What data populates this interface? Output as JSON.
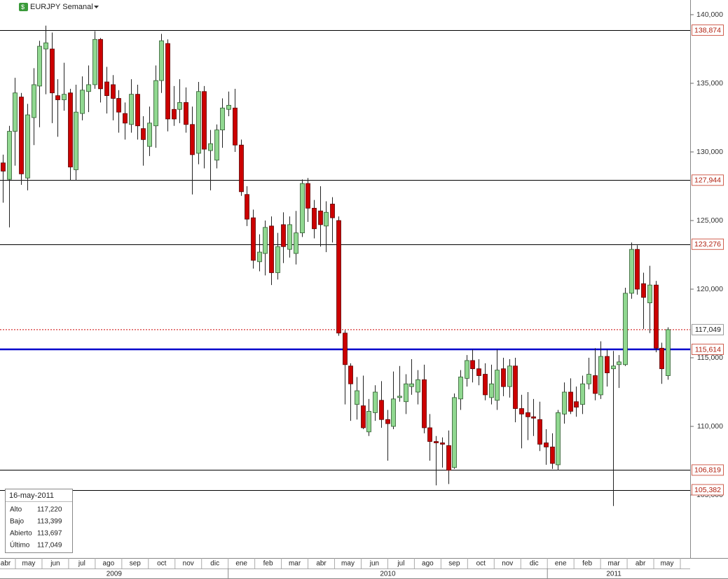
{
  "chart_data": {
    "type": "candlestick",
    "title": "EURJPY Semanal",
    "up_color": "#90d890",
    "down_color": "#cc0000",
    "open": [
      129.2,
      128.0,
      131.5,
      134.0,
      128.1,
      132.5,
      134.8,
      137.5,
      137.5,
      134.1,
      133.8,
      134.3,
      128.7,
      132.8,
      134.4,
      134.9,
      138.2,
      135.1,
      134.9,
      133.9,
      132.8,
      132.0,
      134.2,
      131.7,
      130.4,
      131.9,
      135.2,
      137.9,
      133.1,
      133.1,
      133.6,
      132.0,
      129.9,
      134.4,
      130.1,
      129.4,
      131.6,
      133.1,
      133.2,
      130.5,
      126.9,
      125.2,
      122.0,
      122.6,
      124.6,
      121.2,
      124.7,
      122.9,
      122.6,
      124.1,
      127.7,
      125.9,
      125.7,
      124.6,
      126.2,
      125.0,
      116.8,
      114.4,
      111.6,
      111.5,
      109.6,
      111.0,
      111.9,
      110.5,
      110.0,
      112.1,
      111.8,
      112.9,
      112.5,
      113.4,
      109.9,
      108.9,
      108.8,
      108.6,
      107.0,
      112.0,
      113.5,
      114.8,
      114.2,
      113.8,
      112.1,
      111.9,
      114.2,
      112.9,
      114.4,
      111.3,
      111.0,
      110.7,
      110.5,
      108.8,
      108.5,
      107.2,
      110.9,
      112.5,
      111.8,
      111.6,
      113.1,
      113.7,
      112.3,
      115.1,
      114.2,
      114.5,
      114.5,
      119.7,
      122.9,
      120.4,
      119.0,
      120.3,
      115.7,
      113.697
    ],
    "high": [
      129.8,
      131.9,
      135.4,
      134.3,
      133.5,
      136.1,
      138.1,
      139.2,
      138.7,
      135.3,
      136.5,
      134.6,
      134.9,
      135.5,
      136.3,
      138.8,
      138.3,
      136.2,
      135.6,
      134.5,
      133.6,
      135.3,
      134.9,
      132.6,
      133.3,
      136.3,
      138.6,
      138.2,
      134.8,
      135.3,
      134.7,
      133.3,
      135.1,
      134.8,
      131.6,
      132.0,
      133.9,
      134.4,
      134.6,
      130.9,
      127.5,
      125.8,
      124.0,
      125.0,
      125.3,
      124.1,
      125.6,
      125.3,
      125.7,
      128.0,
      128.1,
      126.5,
      127.5,
      126.4,
      126.7,
      125.3,
      117.0,
      114.6,
      113.6,
      113.7,
      112.0,
      113.0,
      113.3,
      111.2,
      114.0,
      114.4,
      113.8,
      114.9,
      114.1,
      114.5,
      110.9,
      109.3,
      109.2,
      109.7,
      112.4,
      114.1,
      115.2,
      115.6,
      114.9,
      114.6,
      114.5,
      115.6,
      115.0,
      114.9,
      115.0,
      112.3,
      112.5,
      112.0,
      111.8,
      109.8,
      109.5,
      111.2,
      113.2,
      113.5,
      112.9,
      113.7,
      115.0,
      115.7,
      116.2,
      115.6,
      115.5,
      115.2,
      120.1,
      123.4,
      123.2,
      121.2,
      121.7,
      120.6,
      116.1,
      117.22
    ],
    "low": [
      126.3,
      124.5,
      129.0,
      127.6,
      127.2,
      130.5,
      131.8,
      134.2,
      132.1,
      131.1,
      133.0,
      127.9,
      127.9,
      132.3,
      132.9,
      134.6,
      133.6,
      132.8,
      132.3,
      131.4,
      130.9,
      131.4,
      130.9,
      129.0,
      129.7,
      130.3,
      134.3,
      131.5,
      131.9,
      132.1,
      131.4,
      126.9,
      129.1,
      128.8,
      127.2,
      128.8,
      130.3,
      132.6,
      130.0,
      126.8,
      124.6,
      121.5,
      121.3,
      121.0,
      120.3,
      120.7,
      121.9,
      122.3,
      121.8,
      123.8,
      124.9,
      123.7,
      123.1,
      122.7,
      123.4,
      116.6,
      111.6,
      110.4,
      110.5,
      109.8,
      109.3,
      110.4,
      109.9,
      107.5,
      109.8,
      111.8,
      110.9,
      112.3,
      111.6,
      109.5,
      107.5,
      105.7,
      107.0,
      105.8,
      106.9,
      111.2,
      112.9,
      113.2,
      113.0,
      111.9,
      111.6,
      111.2,
      112.2,
      112.1,
      110.3,
      108.4,
      109.0,
      109.3,
      108.2,
      107.2,
      106.9,
      106.8,
      110.2,
      110.9,
      110.7,
      110.9,
      112.7,
      111.9,
      112.0,
      112.9,
      104.2,
      112.8,
      114.4,
      119.3,
      119.6,
      117.1,
      116.8,
      115.4,
      113.1,
      113.399
    ],
    "close": [
      128.6,
      131.5,
      134.3,
      128.4,
      132.7,
      134.9,
      137.7,
      137.95,
      134.3,
      133.8,
      134.2,
      128.9,
      132.9,
      134.5,
      134.9,
      138.2,
      134.6,
      134.1,
      133.9,
      132.9,
      132.1,
      134.2,
      131.9,
      130.9,
      132.1,
      135.2,
      138.1,
      132.4,
      132.4,
      133.6,
      132.0,
      129.8,
      134.4,
      130.2,
      130.6,
      131.6,
      133.2,
      133.4,
      130.5,
      127.1,
      125.1,
      122.1,
      122.7,
      124.5,
      121.2,
      123.1,
      123.1,
      124.7,
      124.1,
      127.7,
      125.9,
      124.4,
      124.7,
      125.6,
      125.2,
      116.8,
      114.5,
      113.1,
      112.6,
      109.9,
      111.1,
      112.5,
      110.5,
      110.2,
      112.0,
      112.2,
      113.1,
      113.1,
      113.4,
      109.9,
      108.9,
      108.8,
      108.7,
      106.8,
      112.1,
      113.6,
      114.8,
      114.2,
      113.7,
      112.3,
      113.1,
      114.1,
      112.9,
      114.4,
      111.3,
      110.9,
      110.7,
      110.6,
      108.7,
      108.5,
      107.3,
      111.0,
      112.5,
      111.1,
      111.4,
      113.1,
      113.8,
      112.4,
      115.1,
      113.9,
      114.4,
      114.7,
      119.7,
      122.9,
      120.0,
      119.4,
      120.3,
      115.7,
      114.2,
      117.049
    ],
    "ylim": [
      100.41,
      141.07
    ],
    "yticks": [
      {
        "value": 140,
        "label": "140,000"
      },
      {
        "value": 135,
        "label": "135,000"
      },
      {
        "value": 130,
        "label": "130,000"
      },
      {
        "value": 125,
        "label": "125,000"
      },
      {
        "value": 120,
        "label": "120,000"
      },
      {
        "value": 115,
        "label": "115,000"
      },
      {
        "value": 110,
        "label": "110,000"
      },
      {
        "value": 105,
        "label": "105,000"
      }
    ],
    "levels": [
      {
        "value": 138.874,
        "label": "138,874"
      },
      {
        "value": 127.944,
        "label": "127,944"
      },
      {
        "value": 123.276,
        "label": "123,276"
      },
      {
        "value": 106.819,
        "label": "106,819"
      },
      {
        "value": 105.382,
        "label": "105,382"
      }
    ],
    "last_price": {
      "value": 117.049,
      "label": "117,049",
      "color": "#cc0000"
    },
    "reference_line": {
      "value": 115.614,
      "label": "115,614",
      "color": "#0000cc"
    },
    "month_labels": [
      "abr",
      "may",
      "jun",
      "jul",
      "ago",
      "sep",
      "oct",
      "nov",
      "dic",
      "ene",
      "feb",
      "mar",
      "abr",
      "may",
      "jun",
      "jul",
      "ago",
      "sep",
      "oct",
      "nov",
      "dic",
      "ene",
      "feb",
      "mar",
      "abr",
      "may"
    ],
    "year_labels": [
      "2009",
      "2010",
      "2011"
    ]
  },
  "info_box": {
    "date": "16-may-2011",
    "rows": [
      [
        "Alto",
        "117,220"
      ],
      [
        "Bajo",
        "113,399"
      ],
      [
        "Abierto",
        "113,697"
      ],
      [
        "Último",
        "117,049"
      ]
    ]
  }
}
